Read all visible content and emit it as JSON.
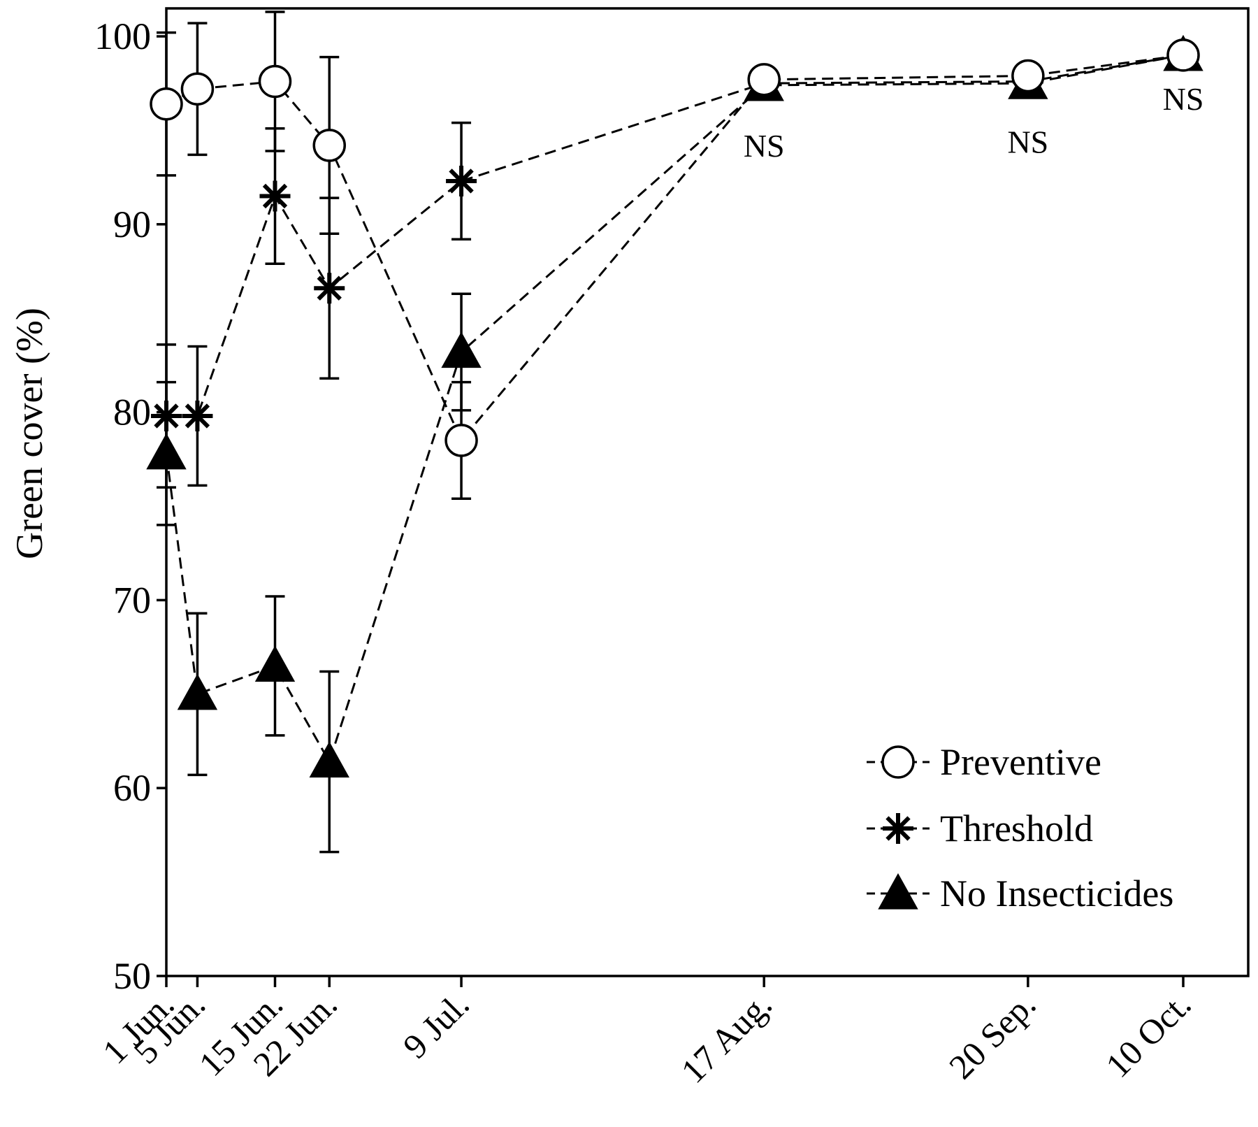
{
  "chart_data": {
    "type": "line",
    "xlabel": "",
    "ylabel": "Green cover (%)",
    "ylim": [
      50,
      102
    ],
    "yticks": [
      50,
      60,
      70,
      80,
      90,
      100
    ],
    "x": [
      "2000-06-01",
      "2000-06-05",
      "2000-06-15",
      "2000-06-22",
      "2000-07-09",
      "2000-08-17",
      "2000-09-20",
      "2000-10-10"
    ],
    "x_tick_labels": [
      "1 Jun.",
      "5 Jun.",
      "15 Jun.",
      "22 Jun.",
      "9 Jul.",
      "17 Aug.",
      "20 Sep.",
      "10 Oct."
    ],
    "grid": false,
    "legend_position": "bottom-right",
    "series": [
      {
        "name": "Preventive",
        "marker": "open-circle",
        "values": [
          96.4,
          97.2,
          97.6,
          94.2,
          78.5,
          97.7,
          97.9,
          99.0
        ],
        "error": [
          3.8,
          3.5,
          3.7,
          4.7,
          3.1,
          null,
          null,
          null
        ]
      },
      {
        "name": "Threshold",
        "marker": "asterisk",
        "values": [
          79.8,
          79.8,
          91.5,
          86.6,
          92.3,
          97.5,
          97.6,
          99.0
        ],
        "error": [
          3.8,
          3.7,
          3.6,
          4.8,
          3.1,
          null,
          null,
          null
        ]
      },
      {
        "name": "No Insecticides",
        "marker": "filled-triangle",
        "values": [
          77.8,
          65.0,
          66.5,
          61.4,
          83.2,
          97.4,
          97.5,
          99.0
        ],
        "error": [
          3.8,
          4.3,
          3.7,
          4.8,
          3.1,
          null,
          null,
          null
        ]
      }
    ],
    "annotations": [
      {
        "text": "NS",
        "x_index": 5
      },
      {
        "text": "NS",
        "x_index": 6
      },
      {
        "text": "NS",
        "x_index": 7
      }
    ]
  },
  "colors": {
    "ink": "#000000",
    "background": "#ffffff"
  }
}
